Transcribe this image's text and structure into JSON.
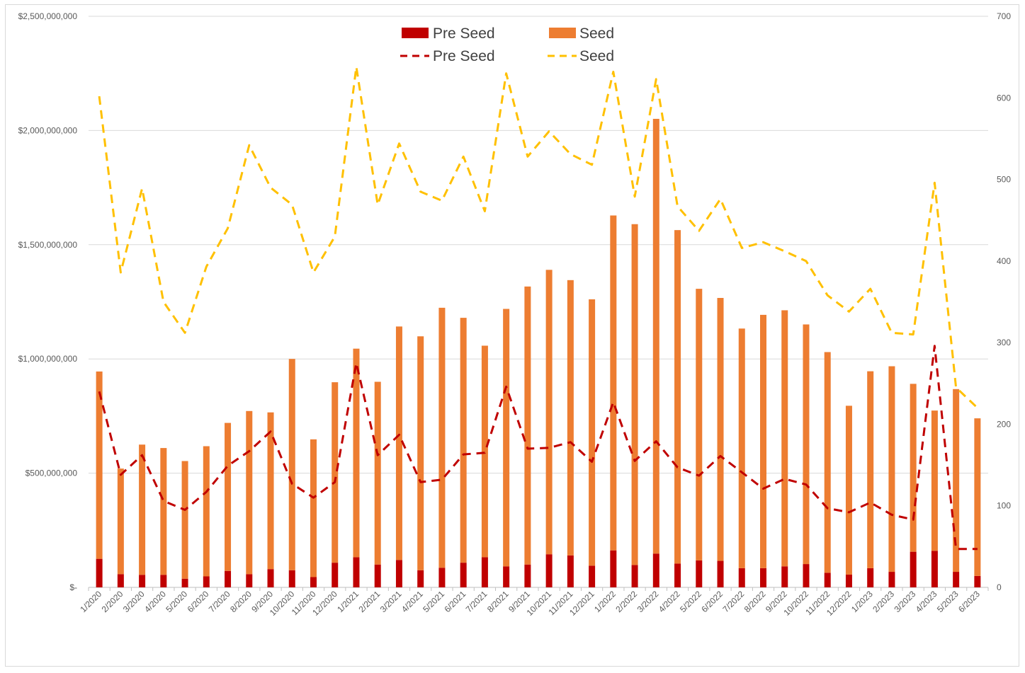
{
  "chart_data": {
    "type": "bar",
    "categories": [
      "1/2020",
      "2/2020",
      "3/2020",
      "4/2020",
      "5/2020",
      "6/2020",
      "7/2020",
      "8/2020",
      "9/2020",
      "10/2020",
      "11/2020",
      "12/2020",
      "1/2021",
      "2/2021",
      "3/2021",
      "4/2021",
      "5/2021",
      "6/2021",
      "7/2021",
      "8/2021",
      "9/2021",
      "10/2021",
      "11/2021",
      "12/2021",
      "1/2022",
      "2/2022",
      "3/2022",
      "4/2022",
      "5/2022",
      "6/2022",
      "7/2022",
      "8/2022",
      "9/2022",
      "10/2022",
      "11/2022",
      "12/2022",
      "1/2023",
      "2/2023",
      "3/2023",
      "4/2023",
      "5/2023",
      "6/2023"
    ],
    "bar_series": [
      {
        "name": "Pre Seed",
        "color": "#c00000",
        "values": [
          125000000,
          58000000,
          55000000,
          55000000,
          38000000,
          48000000,
          72000000,
          58000000,
          80000000,
          75000000,
          45000000,
          108000000,
          132000000,
          100000000,
          120000000,
          75000000,
          86000000,
          108000000,
          132000000,
          92000000,
          100000000,
          145000000,
          140000000,
          95000000,
          162000000,
          98000000,
          148000000,
          104000000,
          118000000,
          116000000,
          84000000,
          84000000,
          92000000,
          102000000,
          64000000,
          56000000,
          84000000,
          68000000,
          156000000,
          160000000,
          68000000,
          50000000
        ]
      },
      {
        "name": "Seed",
        "color": "#ed7d31",
        "values": [
          820000000,
          462000000,
          570000000,
          555000000,
          515000000,
          570000000,
          648000000,
          714000000,
          686000000,
          925000000,
          603000000,
          790000000,
          913000000,
          800000000,
          1022000000,
          1024000000,
          1138000000,
          1072000000,
          926000000,
          1127000000,
          1217000000,
          1245000000,
          1205000000,
          1166000000,
          1466000000,
          1492000000,
          1903000000,
          1460000000,
          1189000000,
          1151000000,
          1049000000,
          1109000000,
          1121000000,
          1049000000,
          966000000,
          739000000,
          862000000,
          900000000,
          735000000,
          614000000,
          800000000,
          690000000
        ]
      }
    ],
    "line_series": [
      {
        "name": "Pre Seed",
        "color": "#c00000",
        "values": [
          240,
          138,
          162,
          106,
          95,
          117,
          149,
          167,
          191,
          127,
          110,
          129,
          275,
          162,
          187,
          129,
          132,
          163,
          165,
          246,
          170,
          171,
          178,
          154,
          227,
          155,
          179,
          147,
          137,
          161,
          141,
          121,
          133,
          126,
          97,
          92,
          104,
          89,
          83,
          296,
          47,
          47
        ]
      },
      {
        "name": "Seed",
        "color": "#ffc000",
        "values": [
          602,
          386,
          489,
          350,
          312,
          393,
          440,
          542,
          490,
          469,
          386,
          430,
          638,
          469,
          544,
          485,
          474,
          528,
          461,
          630,
          528,
          559,
          531,
          518,
          632,
          479,
          623,
          467,
          437,
          476,
          416,
          423,
          412,
          400,
          358,
          338,
          366,
          312,
          310,
          496,
          245,
          220
        ]
      }
    ],
    "y_left": {
      "ticks": [
        "$-",
        "$500,000,000",
        "$1,000,000,000",
        "$1,500,000,000",
        "$2,000,000,000",
        "$2,500,000,000"
      ],
      "min": 0,
      "max": 2500000000
    },
    "y_right": {
      "ticks": [
        "0",
        "100",
        "200",
        "300",
        "400",
        "500",
        "600",
        "700"
      ],
      "min": 0,
      "max": 700
    },
    "legend": {
      "bar_pre_seed": "Pre Seed",
      "bar_seed": "Seed",
      "line_pre_seed": "Pre Seed",
      "line_seed": "Seed",
      "placement": "top-center"
    },
    "title": "",
    "xlabel": "",
    "ylabel": "",
    "grid": true,
    "stacked": true
  }
}
